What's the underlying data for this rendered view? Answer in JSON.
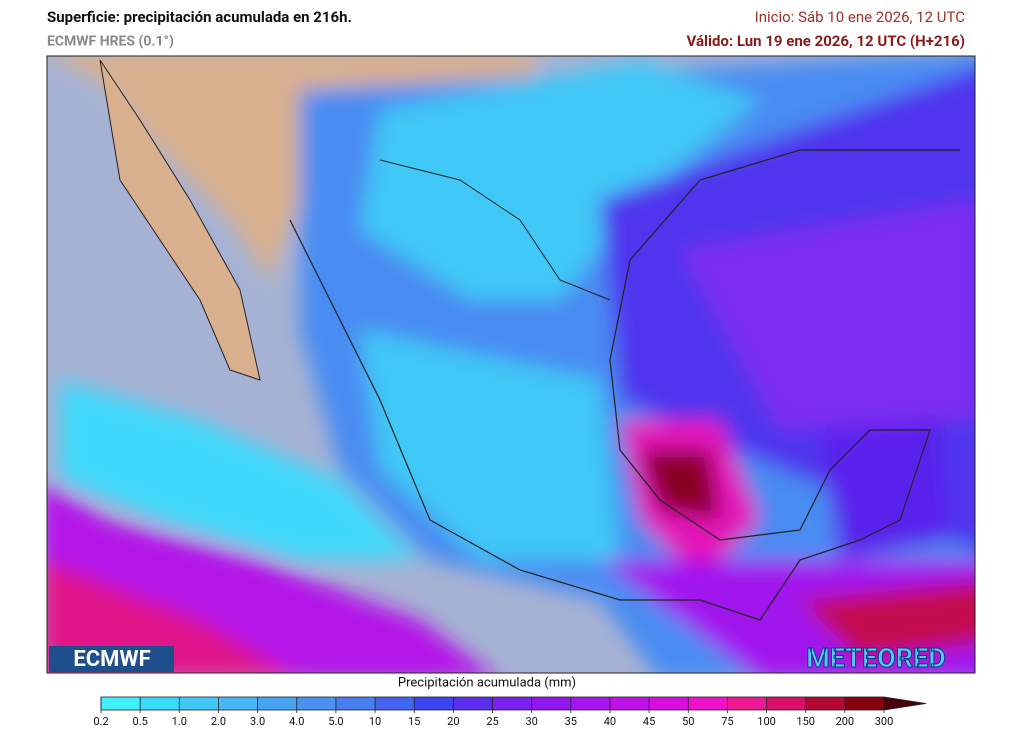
{
  "header": {
    "title": "Superficie: precipitación acumulada en 216h.",
    "subtitle": "ECMWF HRES (0.1°)",
    "init": "Inicio: Sáb 10 ene 2026, 12 UTC",
    "valid": "Válido: Lun 19 ene 2026, 12 UTC (H+216)"
  },
  "logos": {
    "left": "ECMWF",
    "right": "METEORED"
  },
  "colorbar": {
    "label": "Precipitación acumulada (mm)",
    "ticks": [
      "0.2",
      "0.5",
      "1.0",
      "2.0",
      "3.0",
      "4.0",
      "5.0",
      "10",
      "15",
      "20",
      "25",
      "30",
      "35",
      "40",
      "45",
      "50",
      "75",
      "100",
      "150",
      "200",
      "300"
    ],
    "colors": [
      "#3ff0ff",
      "#38dcfb",
      "#42c8f6",
      "#46b6f4",
      "#48a4f2",
      "#4a92f0",
      "#4a7eee",
      "#4266ef",
      "#3c44f4",
      "#5a2ef1",
      "#7722ee",
      "#9018ee",
      "#a814ee",
      "#c010e8",
      "#d80ee0",
      "#ee12cc",
      "#ee1a94",
      "#dc1068",
      "#b40836",
      "#880010"
    ],
    "over_color": "#4a0008"
  }
}
